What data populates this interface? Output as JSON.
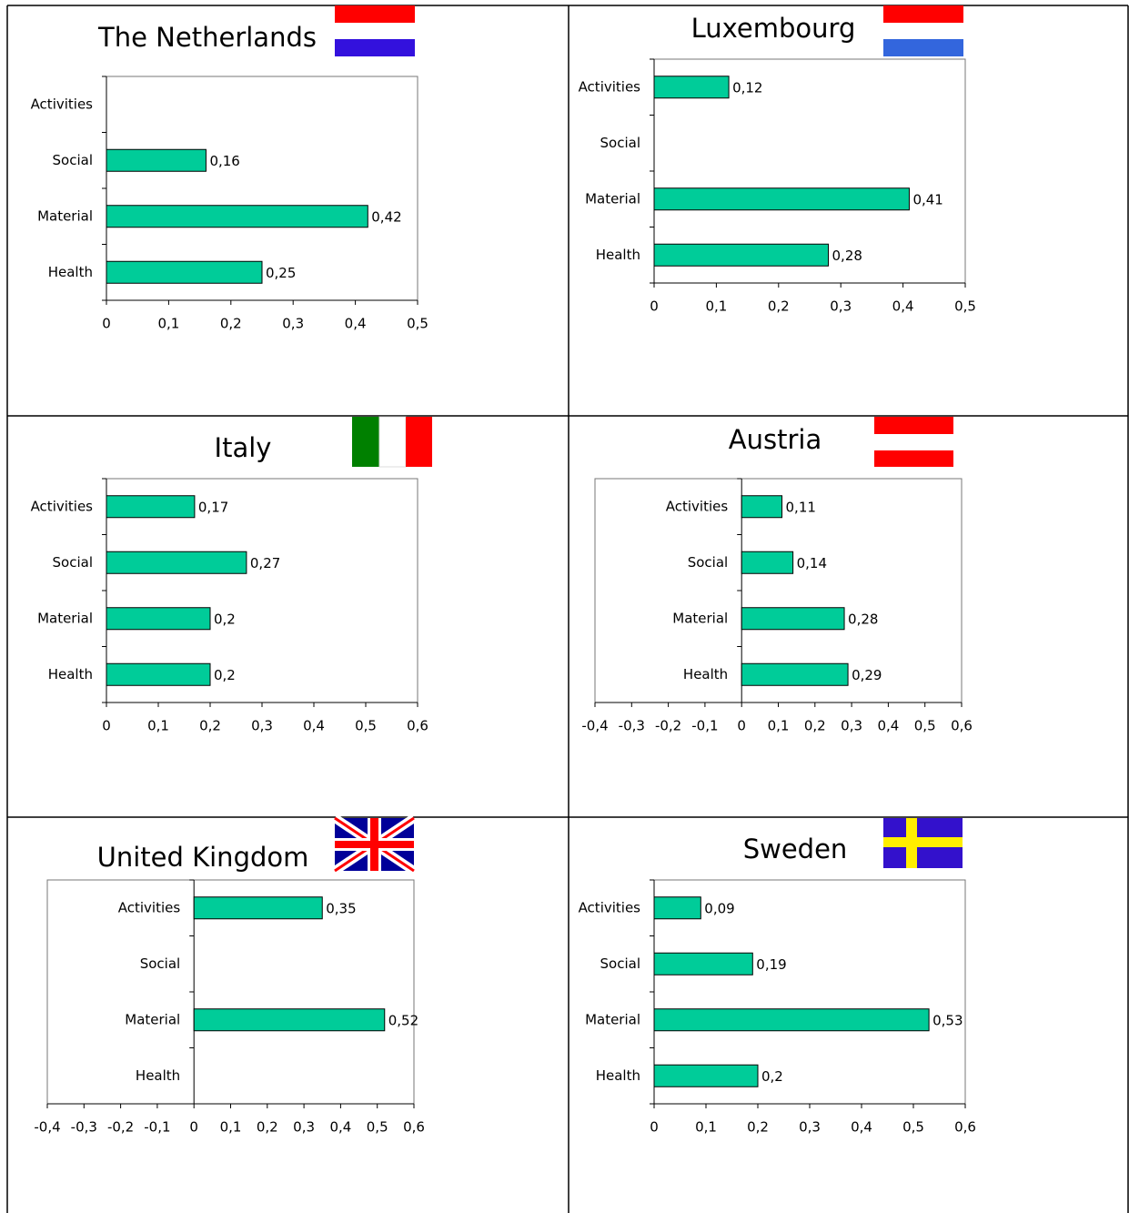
{
  "chart_data": [
    {
      "type": "hbar",
      "title": "The Netherlands",
      "categories": [
        "Activities",
        "Social",
        "Material",
        "Health"
      ],
      "values": [
        null,
        0.16,
        0.42,
        0.25
      ],
      "value_labels": [
        null,
        "0,16",
        "0,42",
        "0,25"
      ],
      "color": "#00cc99",
      "xlim": [
        0,
        0.5
      ],
      "xticks": [
        0,
        {
          "value": 0.1,
          "label": "0,1"
        },
        {
          "value": 0.2,
          "label": "0,2"
        },
        {
          "value": 0.3,
          "label": "0,3"
        },
        {
          "value": 0.4,
          "label": "0,4"
        },
        {
          "value": 0.5,
          "label": "0,5"
        }
      ]
    },
    {
      "type": "hbar",
      "title": "Luxembourg",
      "categories": [
        "Activities",
        "Social",
        "Material",
        "Health"
      ],
      "values": [
        0.12,
        null,
        0.41,
        0.28
      ],
      "value_labels": [
        "0,12",
        null,
        "0,41",
        "0,28"
      ],
      "color": "#00cc99",
      "xlim": [
        0,
        0.5
      ],
      "xticks": [
        0,
        {
          "value": 0.1,
          "label": "0,1"
        },
        {
          "value": 0.2,
          "label": "0,2"
        },
        {
          "value": 0.3,
          "label": "0,3"
        },
        {
          "value": 0.4,
          "label": "0,4"
        },
        {
          "value": 0.5,
          "label": "0,5"
        }
      ]
    },
    {
      "type": "hbar",
      "title": "Italy",
      "categories": [
        "Activities",
        "Social",
        "Material",
        "Health"
      ],
      "values": [
        0.17,
        0.27,
        0.2,
        0.2
      ],
      "value_labels": [
        "0,17",
        "0,27",
        "0,2",
        "0,2"
      ],
      "color": "#00cc99",
      "xlim": [
        0,
        0.6
      ],
      "xticks": [
        0,
        {
          "value": 0.1,
          "label": "0,1"
        },
        {
          "value": 0.2,
          "label": "0,2"
        },
        {
          "value": 0.3,
          "label": "0,3"
        },
        {
          "value": 0.4,
          "label": "0,4"
        },
        {
          "value": 0.5,
          "label": "0,5"
        },
        {
          "value": 0.6,
          "label": "0,6"
        }
      ]
    },
    {
      "type": "hbar",
      "title": "Austria",
      "categories": [
        "Activities",
        "Social",
        "Material",
        "Health"
      ],
      "values": [
        0.11,
        0.14,
        0.28,
        0.29
      ],
      "value_labels": [
        "0,11",
        "0,14",
        "0,28",
        "0,29"
      ],
      "color": "#00cc99",
      "xlim": [
        -0.4,
        0.6
      ],
      "xticks": [
        {
          "value": -0.4,
          "label": "-0,4"
        },
        {
          "value": -0.3,
          "label": "-0,3"
        },
        {
          "value": -0.2,
          "label": "-0,2"
        },
        {
          "value": -0.1,
          "label": "-0,1"
        },
        0,
        {
          "value": 0.1,
          "label": "0,1"
        },
        {
          "value": 0.2,
          "label": "0,2"
        },
        {
          "value": 0.3,
          "label": "0,3"
        },
        {
          "value": 0.4,
          "label": "0,4"
        },
        {
          "value": 0.5,
          "label": "0,5"
        },
        {
          "value": 0.6,
          "label": "0,6"
        }
      ]
    },
    {
      "type": "hbar",
      "title": "United Kingdom",
      "categories": [
        "Activities",
        "Social",
        "Material",
        "Health"
      ],
      "values": [
        0.35,
        null,
        0.52,
        null
      ],
      "value_labels": [
        "0,35",
        null,
        "0,52",
        null
      ],
      "color": "#00cc99",
      "xlim": [
        -0.4,
        0.6
      ],
      "xticks": [
        {
          "value": -0.4,
          "label": "-0,4"
        },
        {
          "value": -0.3,
          "label": "-0,3"
        },
        {
          "value": -0.2,
          "label": "-0,2"
        },
        {
          "value": -0.1,
          "label": "-0,1"
        },
        0,
        {
          "value": 0.1,
          "label": "0,1"
        },
        {
          "value": 0.2,
          "label": "0,2"
        },
        {
          "value": 0.3,
          "label": "0,3"
        },
        {
          "value": 0.4,
          "label": "0,4"
        },
        {
          "value": 0.5,
          "label": "0,5"
        },
        {
          "value": 0.6,
          "label": "0,6"
        }
      ]
    },
    {
      "type": "hbar",
      "title": "Sweden",
      "categories": [
        "Activities",
        "Social",
        "Material",
        "Health"
      ],
      "values": [
        0.09,
        0.19,
        0.53,
        0.2
      ],
      "value_labels": [
        "0,09",
        "0,19",
        "0,53",
        "0,2"
      ],
      "color": "#00cc99",
      "xlim": [
        0,
        0.6
      ],
      "xticks": [
        0,
        {
          "value": 0.1,
          "label": "0,1"
        },
        {
          "value": 0.2,
          "label": "0,2"
        },
        {
          "value": 0.3,
          "label": "0,3"
        },
        {
          "value": 0.4,
          "label": "0,4"
        },
        {
          "value": 0.5,
          "label": "0,5"
        },
        {
          "value": 0.6,
          "label": "0,6"
        }
      ]
    }
  ]
}
